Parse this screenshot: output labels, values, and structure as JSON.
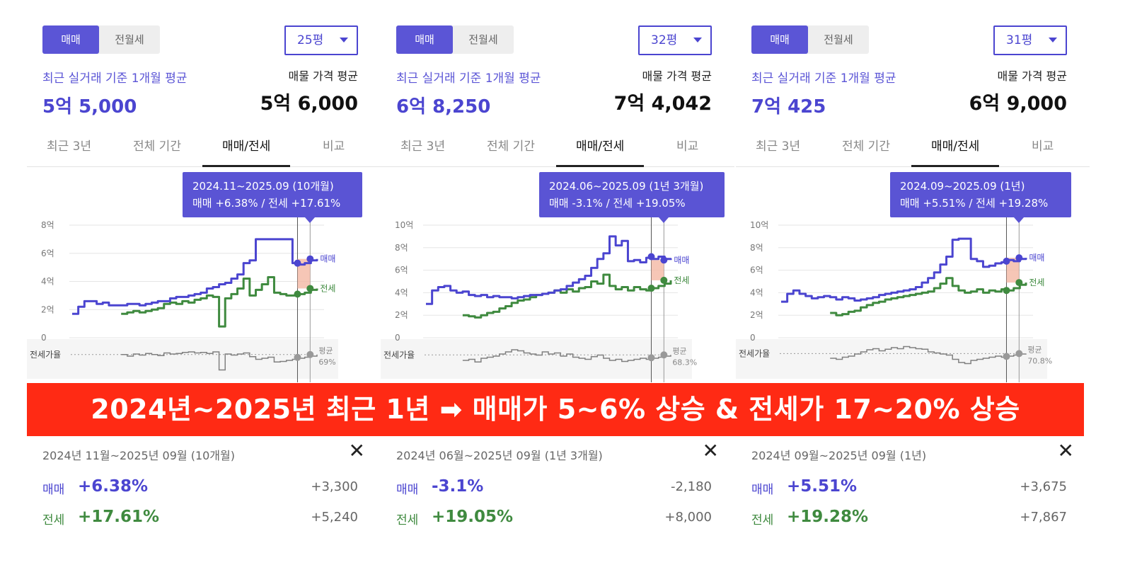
{
  "banner": "2024년~2025년 최근 1년 ➡ 매매가 5~6% 상승 & 전세가 17~20% 상승",
  "colors": {
    "sale": "#4b45d0",
    "rent": "#3f8a3f",
    "ratio": "#888888",
    "banner": "#ff2a14",
    "tooltip": "#5a54d4",
    "gap": "#f4b8a4"
  },
  "icons": {
    "close": "close-icon",
    "dropdown": "chevron-down-icon"
  },
  "panels": [
    {
      "toggle": [
        "매매",
        "전월세"
      ],
      "size": "25평",
      "recent_label": "최근 실거래 기준 1개월 평균",
      "recent_value": "5억 5,000",
      "listing_label": "매물 가격 평균",
      "listing_value": "5억 6,000",
      "tabs": [
        "최근 3년",
        "전체 기간",
        "매매/전세",
        "비교"
      ],
      "active_tab": 2,
      "tooltip": {
        "line1": "2024.11~2025.09 (10개월)",
        "line2": "매매 +6.38%  /  전세 +17.61%"
      },
      "summary": {
        "period": "2024년 11월~2025년 09월 (10개월)",
        "sale_label": "매매",
        "sale_pct": "+6.38%",
        "sale_amt": "+3,300",
        "rent_label": "전세",
        "rent_pct": "+17.61%",
        "rent_amt": "+5,240"
      },
      "chart_data": {
        "type": "line",
        "y_ticks": [
          "8억",
          "6억",
          "4억",
          "2억",
          "0"
        ],
        "ylim": [
          0,
          8
        ],
        "x": [
          0,
          1,
          2,
          3,
          4,
          5,
          6,
          7,
          8,
          9,
          10,
          11,
          12,
          13,
          14,
          15,
          16,
          17,
          18,
          19,
          20,
          21,
          22,
          23,
          24,
          25,
          26,
          27,
          28,
          29,
          30,
          31,
          32,
          33,
          34,
          35,
          36,
          37,
          38,
          39,
          40
        ],
        "series": [
          {
            "name": "매매",
            "values": [
              1.7,
              2.2,
              2.6,
              2.6,
              2.4,
              2.5,
              2.3,
              2.3,
              2.3,
              2.4,
              2.4,
              2.3,
              2.4,
              2.5,
              2.6,
              2.6,
              2.8,
              2.9,
              2.9,
              3.0,
              3.1,
              3.2,
              3.5,
              3.6,
              3.8,
              3.9,
              4.2,
              4.5,
              5.3,
              5.5,
              7.0,
              7.0,
              7.0,
              7.0,
              7.0,
              7.0,
              5.3,
              5.2,
              5.3,
              5.5,
              5.6
            ]
          },
          {
            "name": "전세",
            "values": [
              null,
              null,
              null,
              null,
              null,
              null,
              null,
              null,
              1.7,
              1.8,
              1.9,
              1.8,
              1.9,
              2.0,
              2.1,
              2.4,
              2.5,
              2.4,
              2.6,
              2.5,
              2.7,
              2.8,
              3.0,
              2.9,
              0.8,
              2.8,
              3.1,
              3.5,
              4.2,
              3.0,
              3.4,
              3.8,
              4.3,
              3.2,
              3.1,
              3.0,
              3.0,
              3.1,
              3.2,
              3.4,
              3.5
            ]
          },
          {
            "name": "전세가율",
            "values": [
              null,
              null,
              null,
              null,
              null,
              null,
              null,
              null,
              69,
              66,
              70,
              68,
              71,
              69,
              67,
              72,
              70,
              71,
              73,
              74,
              72,
              73,
              71,
              74,
              40,
              70,
              68,
              70,
              72,
              65,
              60,
              62,
              64,
              55,
              56,
              58,
              60,
              62,
              64,
              66,
              69
            ]
          }
        ],
        "ratio_label": "전세가율",
        "avg_label": "평균",
        "avg_value": "69%",
        "end_labels": [
          "매매",
          "전세"
        ]
      }
    },
    {
      "toggle": [
        "매매",
        "전월세"
      ],
      "size": "32평",
      "recent_label": "최근 실거래 기준 1개월 평균",
      "recent_value": "6억 8,250",
      "listing_label": "매물 가격 평균",
      "listing_value": "7억 4,042",
      "tabs": [
        "최근 3년",
        "전체 기간",
        "매매/전세",
        "비교"
      ],
      "active_tab": 2,
      "tooltip": {
        "line1": "2024.06~2025.09 (1년 3개월)",
        "line2": "매매 -3.1%  /  전세 +19.05%"
      },
      "summary": {
        "period": "2024년 06월~2025년 09월 (1년 3개월)",
        "sale_label": "매매",
        "sale_pct": "-3.1%",
        "sale_amt": "-2,180",
        "rent_label": "전세",
        "rent_pct": "+19.05%",
        "rent_amt": "+8,000"
      },
      "chart_data": {
        "type": "line",
        "y_ticks": [
          "10억",
          "8억",
          "6억",
          "4억",
          "2억",
          "0"
        ],
        "ylim": [
          0,
          10
        ],
        "x": [
          0,
          1,
          2,
          3,
          4,
          5,
          6,
          7,
          8,
          9,
          10,
          11,
          12,
          13,
          14,
          15,
          16,
          17,
          18,
          19,
          20,
          21,
          22,
          23,
          24,
          25,
          26,
          27,
          28,
          29,
          30,
          31,
          32,
          33,
          34,
          35,
          36,
          37,
          38,
          39,
          40
        ],
        "series": [
          {
            "name": "매매",
            "values": [
              3.0,
              4.2,
              4.5,
              4.6,
              4.2,
              4.0,
              4.1,
              3.8,
              3.7,
              3.8,
              3.6,
              3.7,
              3.6,
              3.6,
              3.5,
              3.6,
              3.7,
              3.8,
              3.8,
              3.9,
              4.0,
              4.2,
              4.3,
              4.6,
              4.9,
              5.2,
              5.5,
              6.2,
              7.0,
              7.5,
              9.0,
              8.2,
              8.6,
              6.8,
              6.9,
              6.7,
              7.1,
              7.0,
              7.2,
              7.0,
              6.9
            ]
          },
          {
            "name": "전세",
            "values": [
              null,
              null,
              null,
              null,
              null,
              null,
              2.0,
              1.9,
              1.8,
              2.0,
              2.2,
              2.3,
              2.6,
              2.8,
              3.1,
              3.3,
              3.4,
              3.6,
              3.8,
              3.9,
              4.0,
              4.2,
              4.0,
              4.3,
              4.1,
              4.4,
              4.5,
              5.0,
              4.8,
              5.6,
              4.6,
              4.3,
              4.5,
              4.2,
              4.5,
              4.3,
              4.2,
              4.4,
              4.6,
              4.8,
              5.1
            ]
          },
          {
            "name": "전세가율",
            "values": [
              null,
              null,
              null,
              null,
              null,
              null,
              58,
              60,
              55,
              62,
              64,
              66,
              70,
              74,
              78,
              76,
              72,
              70,
              68,
              74,
              70,
              72,
              66,
              70,
              64,
              62,
              60,
              65,
              68,
              62,
              58,
              60,
              56,
              58,
              60,
              62,
              60,
              62,
              64,
              66,
              68.3
            ]
          }
        ],
        "ratio_label": "전세가율",
        "avg_label": "평균",
        "avg_value": "68.3%",
        "end_labels": [
          "매매",
          "전세"
        ]
      }
    },
    {
      "toggle": [
        "매매",
        "전월세"
      ],
      "size": "31평",
      "recent_label": "최근 실거래 기준 1개월 평균",
      "recent_value": "7억 425",
      "listing_label": "매물 가격 평균",
      "listing_value": "6억 9,000",
      "tabs": [
        "최근 3년",
        "전체 기간",
        "매매/전세",
        "비교"
      ],
      "active_tab": 2,
      "tooltip": {
        "line1": "2024.09~2025.09 (1년)",
        "line2": "매매 +5.51%  /  전세 +19.28%"
      },
      "summary": {
        "period": "2024년 09월~2025년 09월 (1년)",
        "sale_label": "매매",
        "sale_pct": "+5.51%",
        "sale_amt": "+3,675",
        "rent_label": "전세",
        "rent_pct": "+19.28%",
        "rent_amt": "+7,867"
      },
      "chart_data": {
        "type": "line",
        "y_ticks": [
          "10억",
          "8억",
          "6억",
          "4억",
          "2억",
          "0"
        ],
        "ylim": [
          0,
          10
        ],
        "x": [
          0,
          1,
          2,
          3,
          4,
          5,
          6,
          7,
          8,
          9,
          10,
          11,
          12,
          13,
          14,
          15,
          16,
          17,
          18,
          19,
          20,
          21,
          22,
          23,
          24,
          25,
          26,
          27,
          28,
          29,
          30,
          31,
          32,
          33,
          34,
          35,
          36,
          37,
          38,
          39,
          40
        ],
        "series": [
          {
            "name": "매매",
            "values": [
              3.2,
              3.9,
              4.2,
              3.9,
              3.7,
              3.5,
              3.6,
              3.7,
              3.6,
              3.4,
              3.6,
              3.5,
              3.3,
              3.4,
              3.5,
              3.6,
              3.8,
              3.9,
              4.0,
              4.1,
              4.2,
              4.3,
              4.5,
              4.9,
              5.3,
              5.8,
              6.5,
              7.2,
              8.7,
              8.8,
              8.8,
              7.0,
              6.8,
              6.3,
              6.4,
              6.6,
              6.7,
              6.9,
              6.8,
              7.0,
              7.1
            ]
          },
          {
            "name": "전세",
            "values": [
              null,
              null,
              null,
              null,
              null,
              null,
              null,
              null,
              2.2,
              2.0,
              2.1,
              2.3,
              2.4,
              2.7,
              2.9,
              3.1,
              3.2,
              3.4,
              3.5,
              3.6,
              3.7,
              3.8,
              3.9,
              4.0,
              4.1,
              4.4,
              4.8,
              5.3,
              4.6,
              4.2,
              4.0,
              4.1,
              4.3,
              4.0,
              4.2,
              4.1,
              4.3,
              4.2,
              4.4,
              4.7,
              4.9
            ]
          },
          {
            "name": "전세가율",
            "values": [
              null,
              null,
              null,
              null,
              null,
              null,
              null,
              null,
              62,
              60,
              64,
              66,
              70,
              74,
              78,
              80,
              76,
              79,
              82,
              80,
              84,
              82,
              80,
              79,
              74,
              72,
              70,
              68,
              60,
              54,
              52,
              58,
              60,
              62,
              64,
              66,
              64,
              66,
              68,
              70,
              70.8
            ]
          }
        ],
        "ratio_label": "전세가율",
        "avg_label": "평균",
        "avg_value": "70.8%",
        "end_labels": [
          "매매",
          "전세"
        ]
      }
    }
  ]
}
